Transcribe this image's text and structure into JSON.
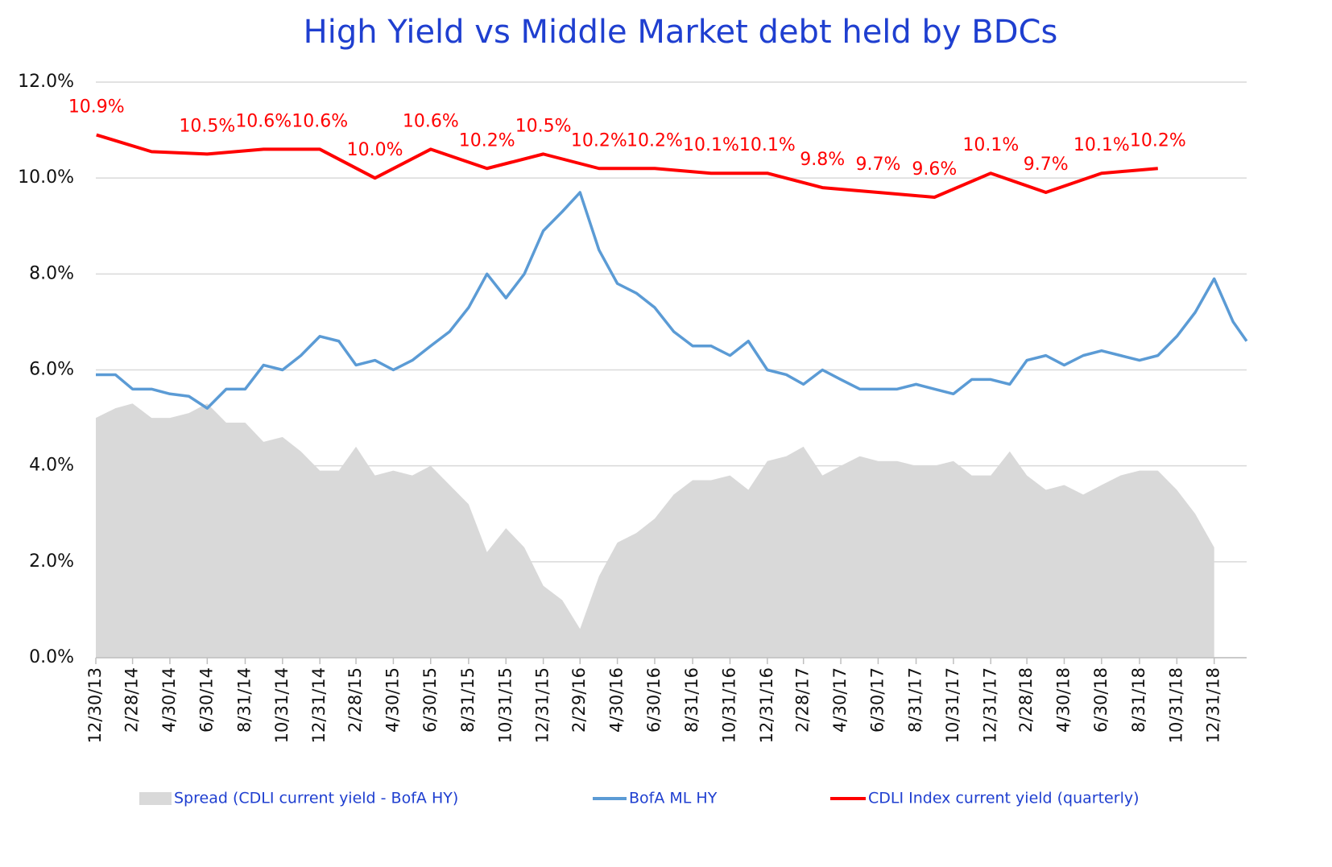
{
  "chart_data": {
    "type": "line",
    "title": "High Yield  vs  Middle Market debt held by BDCs",
    "x": [
      "12/30/13",
      "1/31/14",
      "2/28/14",
      "3/31/14",
      "4/30/14",
      "5/31/14",
      "6/30/14",
      "7/31/14",
      "8/31/14",
      "9/30/14",
      "10/31/14",
      "11/30/14",
      "12/31/14",
      "1/31/15",
      "2/28/15",
      "3/31/15",
      "4/30/15",
      "5/31/15",
      "6/30/15",
      "7/31/15",
      "8/31/15",
      "9/30/15",
      "10/31/15",
      "11/30/15",
      "12/31/15",
      "1/31/16",
      "2/29/16",
      "3/31/16",
      "4/30/16",
      "5/31/16",
      "6/30/16",
      "7/31/16",
      "8/31/16",
      "9/30/16",
      "10/31/16",
      "11/30/16",
      "12/31/16",
      "1/31/17",
      "2/28/17",
      "3/31/17",
      "4/30/17",
      "5/31/17",
      "6/30/17",
      "7/31/17",
      "8/31/17",
      "9/30/17",
      "10/31/17",
      "11/30/17",
      "12/31/17",
      "1/31/18",
      "2/28/18",
      "3/31/18",
      "4/30/18",
      "5/31/18",
      "6/30/18",
      "7/31/18",
      "8/31/18",
      "9/30/18",
      "10/31/18",
      "11/30/18",
      "12/31/18",
      "1/31/19",
      "2/22/19"
    ],
    "series": [
      {
        "name": "Spread (CDLI current yield - BofA HY)",
        "color": "#d9d9d9",
        "kind": "area",
        "values": [
          5.0,
          5.2,
          5.3,
          5.0,
          5.0,
          5.1,
          5.3,
          4.9,
          4.9,
          4.5,
          4.6,
          4.3,
          3.9,
          3.9,
          4.4,
          3.8,
          3.9,
          3.8,
          4.0,
          3.6,
          3.2,
          2.2,
          2.7,
          2.3,
          1.5,
          1.2,
          0.6,
          1.7,
          2.4,
          2.6,
          2.9,
          3.4,
          3.7,
          3.7,
          3.8,
          3.5,
          4.1,
          4.2,
          4.4,
          3.8,
          4.0,
          4.2,
          4.1,
          4.1,
          4.0,
          4.0,
          4.1,
          3.8,
          3.8,
          4.3,
          3.8,
          3.5,
          3.6,
          3.4,
          3.6,
          3.8,
          3.9,
          3.9,
          3.5,
          3.0,
          2.3,
          null,
          null
        ]
      },
      {
        "name": "BofA ML HY",
        "color": "#5b9bd5",
        "kind": "line",
        "values": [
          5.9,
          5.9,
          5.6,
          5.6,
          5.5,
          5.45,
          5.2,
          5.6,
          5.6,
          6.1,
          6.0,
          6.3,
          6.7,
          6.6,
          6.1,
          6.2,
          6.0,
          6.2,
          6.5,
          6.8,
          7.3,
          8.0,
          7.5,
          8.0,
          8.9,
          9.3,
          9.7,
          8.5,
          7.8,
          7.6,
          7.3,
          6.8,
          6.5,
          6.5,
          6.3,
          6.6,
          6.0,
          5.9,
          5.7,
          6.0,
          5.8,
          5.6,
          5.6,
          5.6,
          5.7,
          5.6,
          5.5,
          5.8,
          5.8,
          5.7,
          6.2,
          6.3,
          6.1,
          6.3,
          6.4,
          6.3,
          6.2,
          6.3,
          6.7,
          7.2,
          7.9,
          7.0,
          6.6
        ]
      },
      {
        "name": "CDLI Index current yield (quarterly)",
        "color": "#ff0000",
        "kind": "line",
        "x": [
          "12/31/13",
          "3/31/14",
          "6/30/14",
          "9/30/14",
          "12/31/14",
          "3/31/15",
          "6/30/15",
          "9/30/15",
          "12/31/15",
          "3/31/16",
          "6/30/16",
          "9/30/16",
          "12/31/16",
          "3/31/17",
          "6/30/17",
          "9/30/17",
          "12/31/17",
          "3/31/18",
          "6/30/18",
          "9/30/18"
        ],
        "values": [
          10.9,
          10.55,
          10.5,
          10.6,
          10.6,
          10.0,
          10.6,
          10.2,
          10.5,
          10.2,
          10.2,
          10.1,
          10.1,
          9.8,
          9.7,
          9.6,
          10.1,
          9.7,
          10.1,
          10.2
        ],
        "value_labels": [
          "10.9%",
          null,
          "10.5%",
          "10.6%",
          "10.6%",
          "10.0%",
          "10.6%",
          "10.2%",
          "10.5%",
          "10.2%",
          "10.2%",
          "10.1%",
          "10.1%",
          "9.8%",
          "9.7%",
          "9.6%",
          "10.1%",
          "9.7%",
          "10.1%",
          "10.2%"
        ]
      }
    ],
    "xlim": [
      "12/30/13",
      "2/22/19"
    ],
    "xticks": [
      "12/30/13",
      "2/28/14",
      "4/30/14",
      "6/30/14",
      "8/31/14",
      "10/31/14",
      "12/31/14",
      "2/28/15",
      "4/30/15",
      "6/30/15",
      "8/31/15",
      "10/31/15",
      "12/31/15",
      "2/29/16",
      "4/30/16",
      "6/30/16",
      "8/31/16",
      "10/31/16",
      "12/31/16",
      "2/28/17",
      "4/30/17",
      "6/30/17",
      "8/31/17",
      "10/31/17",
      "12/31/17",
      "2/28/18",
      "4/30/18",
      "6/30/18",
      "8/31/18",
      "10/31/18",
      "12/31/18"
    ],
    "ylim": [
      0,
      12
    ],
    "yticks": [
      {
        "value": 0,
        "label": "0.0%"
      },
      {
        "value": 2,
        "label": "2.0%"
      },
      {
        "value": 4,
        "label": "4.0%"
      },
      {
        "value": 6,
        "label": "6.0%"
      },
      {
        "value": 8,
        "label": "8.0%"
      },
      {
        "value": 10,
        "label": "10.0%"
      },
      {
        "value": 12,
        "label": "12.0%"
      }
    ],
    "grid": true,
    "legend": "bottom"
  }
}
